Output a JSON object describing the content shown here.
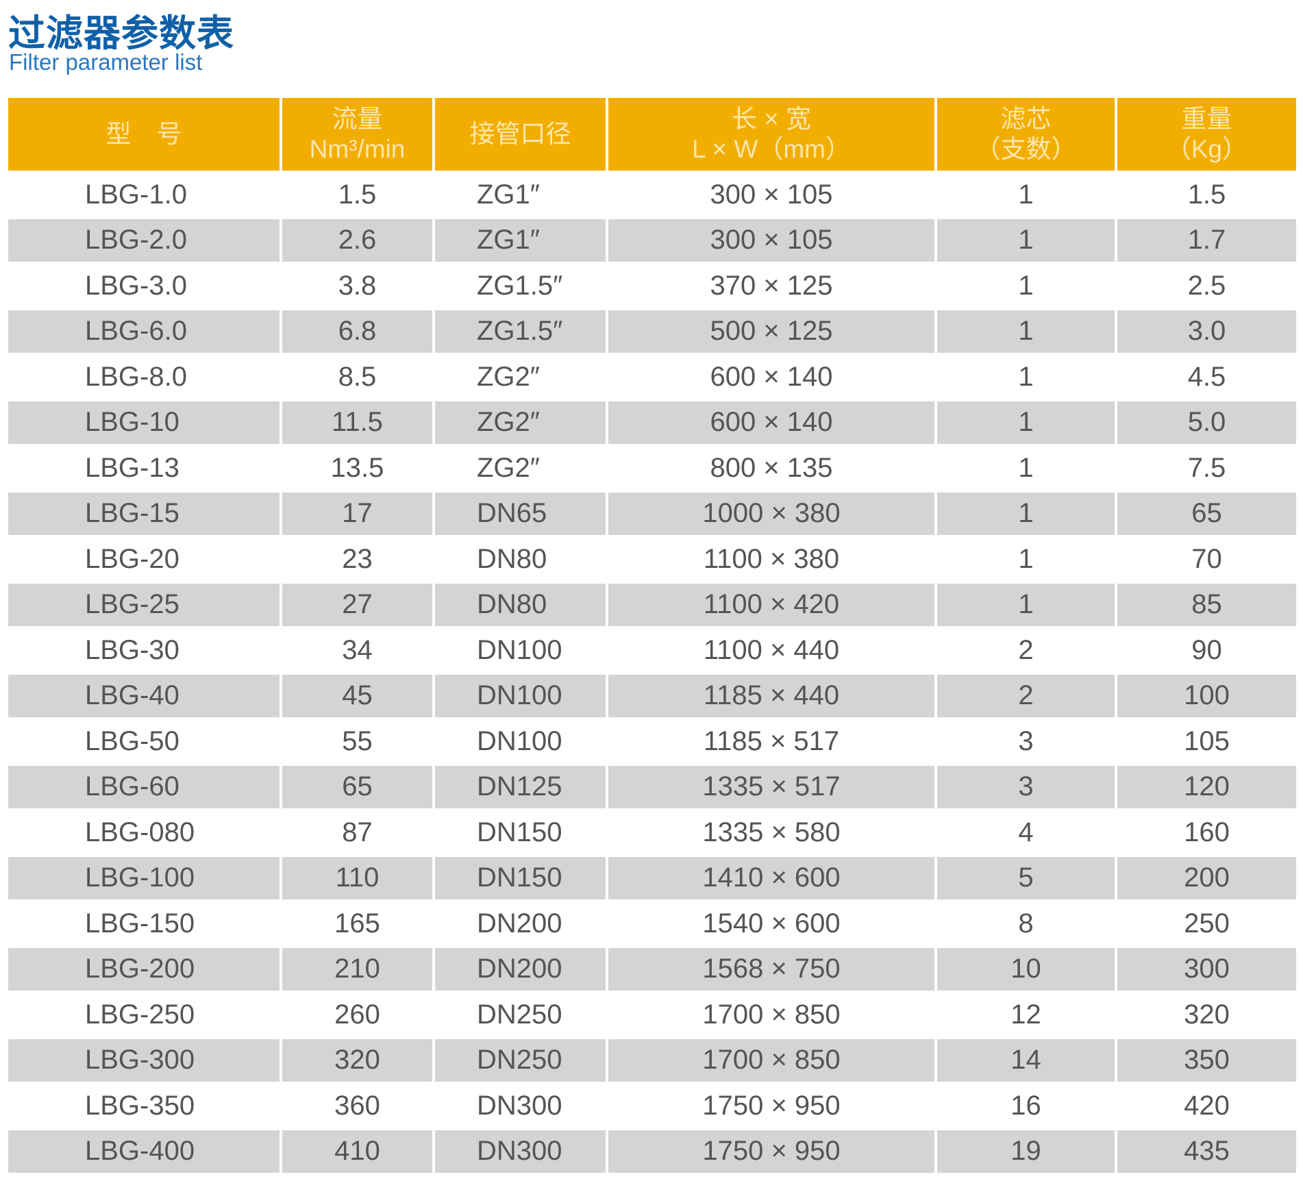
{
  "title": "过滤器参数表",
  "subtitle": "Filter parameter list",
  "colors": {
    "header_bg": "#f2ae00",
    "title": "#1060a8",
    "alt_row": "#d4d4d4"
  },
  "headers": [
    {
      "line1": "型　号",
      "line2": ""
    },
    {
      "line1": "流量",
      "line2": "Nm³/min"
    },
    {
      "line1": "接管口径",
      "line2": ""
    },
    {
      "line1": "长 × 宽",
      "line2": "L × W（mm）"
    },
    {
      "line1": "滤芯",
      "line2": "（支数）"
    },
    {
      "line1": "重量",
      "line2": "（Kg）"
    }
  ],
  "rows": [
    [
      "LBG-1.0",
      "1.5",
      "ZG1″",
      "300 × 105",
      "1",
      "1.5"
    ],
    [
      "LBG-2.0",
      "2.6",
      "ZG1″",
      "300 × 105",
      "1",
      "1.7"
    ],
    [
      "LBG-3.0",
      "3.8",
      "ZG1.5″",
      "370 × 125",
      "1",
      "2.5"
    ],
    [
      "LBG-6.0",
      "6.8",
      "ZG1.5″",
      "500 × 125",
      "1",
      "3.0"
    ],
    [
      "LBG-8.0",
      "8.5",
      "ZG2″",
      "600 × 140",
      "1",
      "4.5"
    ],
    [
      "LBG-10",
      "11.5",
      "ZG2″",
      "600 × 140",
      "1",
      "5.0"
    ],
    [
      "LBG-13",
      "13.5",
      "ZG2″",
      "800 × 135",
      "1",
      "7.5"
    ],
    [
      "LBG-15",
      "17",
      "DN65",
      "1000 × 380",
      "1",
      "65"
    ],
    [
      "LBG-20",
      "23",
      "DN80",
      "1100 × 380",
      "1",
      "70"
    ],
    [
      "LBG-25",
      "27",
      "DN80",
      "1100 × 420",
      "1",
      "85"
    ],
    [
      "LBG-30",
      "34",
      "DN100",
      "1100 × 440",
      "2",
      "90"
    ],
    [
      "LBG-40",
      "45",
      "DN100",
      "1185 × 440",
      "2",
      "100"
    ],
    [
      "LBG-50",
      "55",
      "DN100",
      "1185 × 517",
      "3",
      "105"
    ],
    [
      "LBG-60",
      "65",
      "DN125",
      "1335 × 517",
      "3",
      "120"
    ],
    [
      "LBG-080",
      "87",
      "DN150",
      "1335 × 580",
      "4",
      "160"
    ],
    [
      "LBG-100",
      "110",
      "DN150",
      "1410 × 600",
      "5",
      "200"
    ],
    [
      "LBG-150",
      "165",
      "DN200",
      "1540 × 600",
      "8",
      "250"
    ],
    [
      "LBG-200",
      "210",
      "DN200",
      "1568 × 750",
      "10",
      "300"
    ],
    [
      "LBG-250",
      "260",
      "DN250",
      "1700 × 850",
      "12",
      "320"
    ],
    [
      "LBG-300",
      "320",
      "DN250",
      "1700 × 850",
      "14",
      "350"
    ],
    [
      "LBG-350",
      "360",
      "DN300",
      "1750 × 950",
      "16",
      "420"
    ],
    [
      "LBG-400",
      "410",
      "DN300",
      "1750 × 950",
      "19",
      "435"
    ]
  ]
}
